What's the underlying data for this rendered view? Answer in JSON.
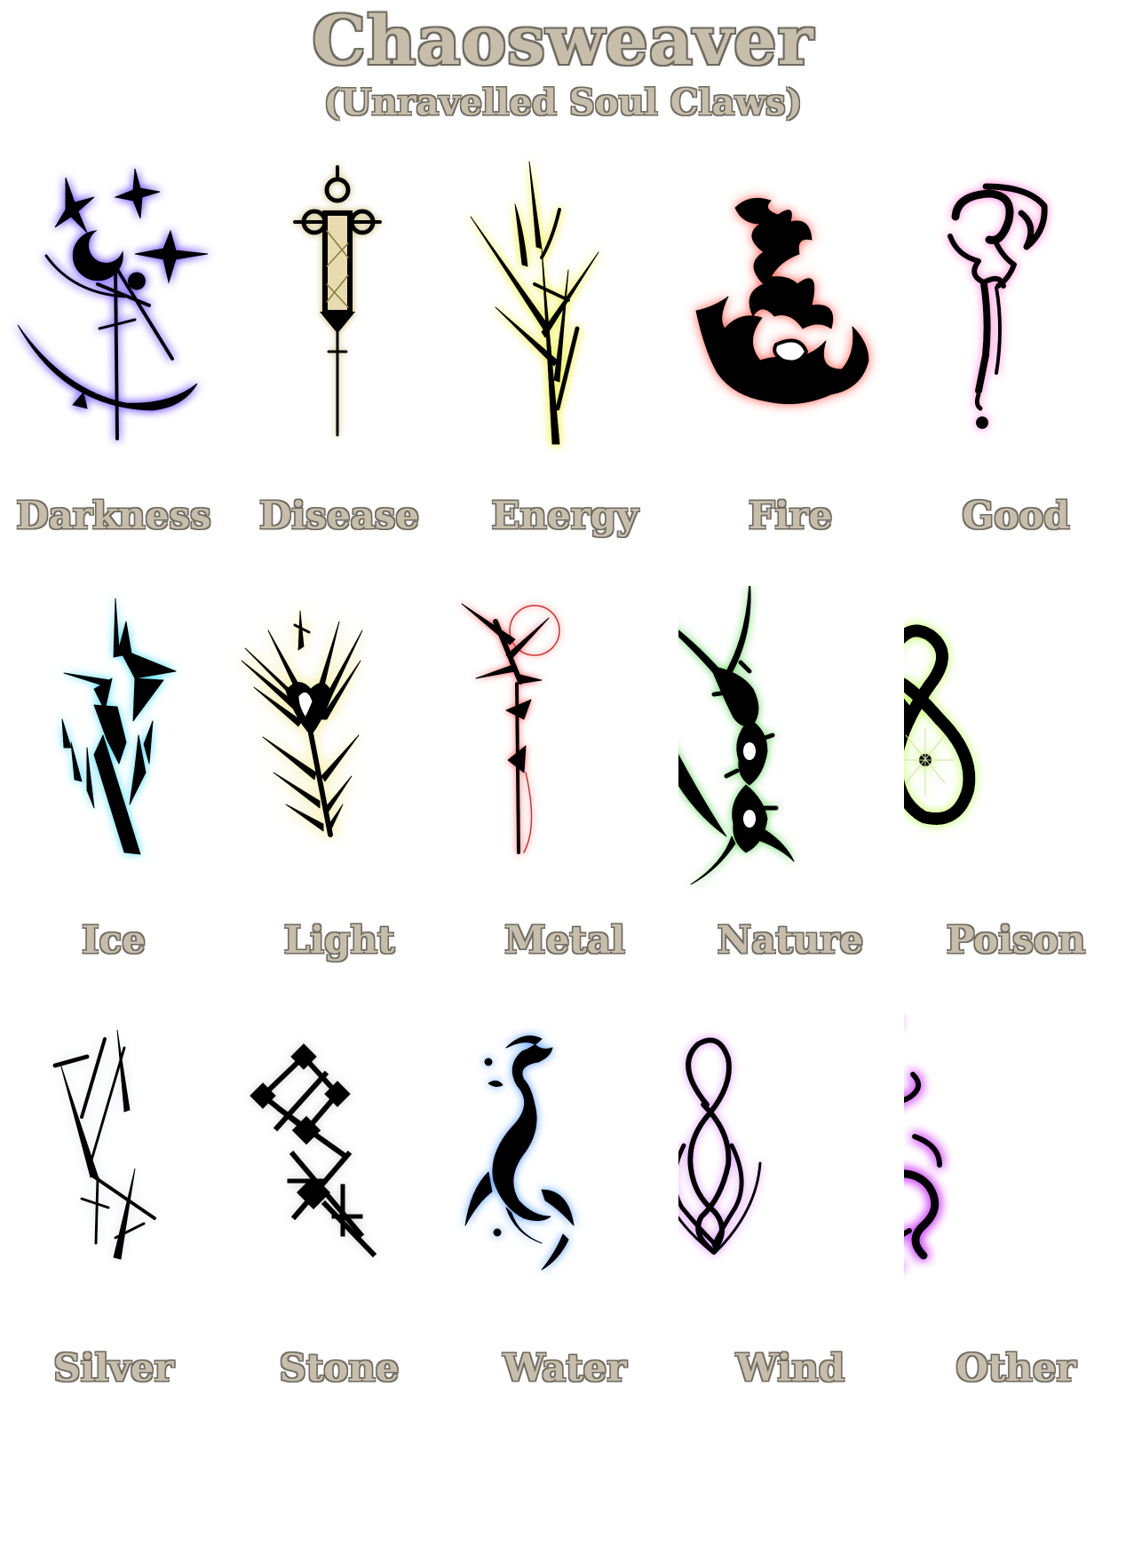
{
  "header": {
    "title": "Chaosweaver",
    "subtitle": "(Unravelled Soul Claws)"
  },
  "symbols": [
    {
      "label": "Darkness",
      "icon": "darkness-claw-icon",
      "glow": "#7a5cff"
    },
    {
      "label": "Disease",
      "icon": "disease-claw-icon",
      "glow": "#b9a650"
    },
    {
      "label": "Energy",
      "icon": "energy-claw-icon",
      "glow": "#f2f25a"
    },
    {
      "label": "Fire",
      "icon": "fire-claw-icon",
      "glow": "#ff4a3a"
    },
    {
      "label": "Good",
      "icon": "good-claw-icon",
      "glow": "#ff66cc"
    },
    {
      "label": "Ice",
      "icon": "ice-claw-icon",
      "glow": "#38d9f5"
    },
    {
      "label": "Light",
      "icon": "light-claw-icon",
      "glow": "#f5efb0"
    },
    {
      "label": "Metal",
      "icon": "metal-claw-icon",
      "glow": "#ff4a4a"
    },
    {
      "label": "Nature",
      "icon": "nature-claw-icon",
      "glow": "#3fcc3a"
    },
    {
      "label": "Poison",
      "icon": "poison-claw-icon",
      "glow": "#b8ff4a"
    },
    {
      "label": "Silver",
      "icon": "silver-claw-icon",
      "glow": "#d9e0e8"
    },
    {
      "label": "Stone",
      "icon": "stone-claw-icon",
      "glow": "#d4d4d4"
    },
    {
      "label": "Water",
      "icon": "water-claw-icon",
      "glow": "#3f8fff"
    },
    {
      "label": "Wind",
      "icon": "wind-claw-icon",
      "glow": "#d880ff"
    },
    {
      "label": "Other",
      "icon": "other-claw-icon",
      "glow": "#cc33ff"
    }
  ]
}
